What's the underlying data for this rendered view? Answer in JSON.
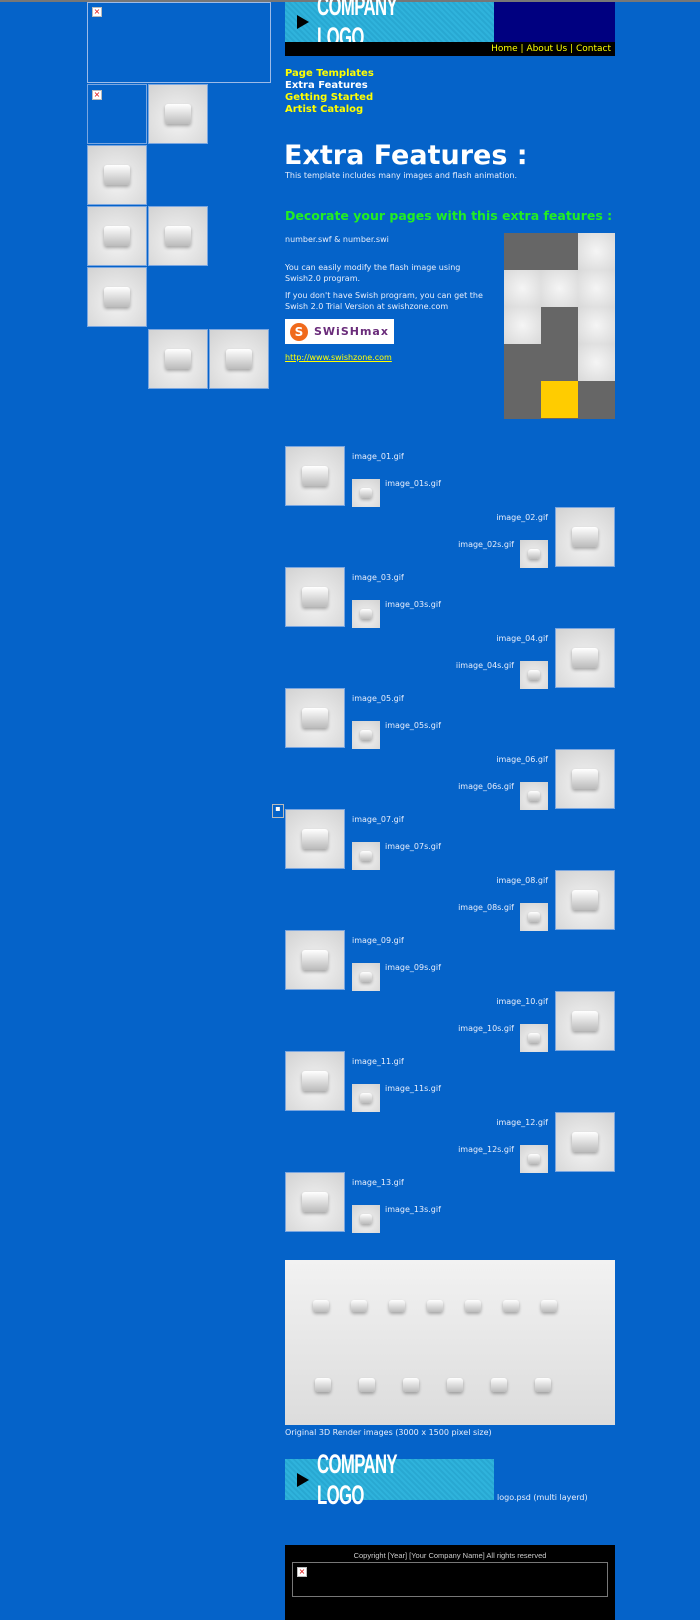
{
  "header": {
    "logo_text": "COMPANY LOGO",
    "nav": [
      "Home",
      "About Us",
      "Contact"
    ],
    "separator": "|"
  },
  "menu": [
    "Page Templates",
    "Extra Features",
    "Getting Started",
    "Artist Catalog"
  ],
  "main": {
    "title": "Extra Features :",
    "subtitle": "This template includes many images and flash animation.",
    "section_heading": "Decorate your pages with this extra features :",
    "flash_files": "number.swf & number.swi",
    "para1": "You can easily modify the flash image using Swish2.0 program.",
    "para2": "If you don't have Swish program, you can get the Swish 2.0 Trial Version at swishzone.com",
    "swish_logo": "SWiSHmax",
    "link": "http://www.swishzone.com"
  },
  "images": [
    {
      "big": "image_01.gif",
      "small": "image_01s.gif"
    },
    {
      "big": "image_02.gif",
      "small": "image_02s.gif"
    },
    {
      "big": "image_03.gif",
      "small": "image_03s.gif"
    },
    {
      "big": "image_04.gif",
      "small": "iimage_04s.gif"
    },
    {
      "big": "image_05.gif",
      "small": "image_05s.gif"
    },
    {
      "big": "image_06.gif",
      "small": "image_06s.gif"
    },
    {
      "big": "image_07.gif",
      "small": "image_07s.gif"
    },
    {
      "big": "image_08.gif",
      "small": "image_08s.gif"
    },
    {
      "big": "image_09.gif",
      "small": "image_09s.gif"
    },
    {
      "big": "image_10.gif",
      "small": "image_10s.gif"
    },
    {
      "big": "image_11.gif",
      "small": "image_11s.gif"
    },
    {
      "big": "image_12.gif",
      "small": "image_12s.gif"
    },
    {
      "big": "image_13.gif",
      "small": "image_13s.gif"
    }
  ],
  "render_caption": "Original 3D Render images (3000 x 1500 pixel size)",
  "logo_caption": "logo.psd (multi layerd)",
  "footer": {
    "copyright": "Copyright [Year] [Your Company Name] All rights reserved"
  },
  "colors": {
    "background": "#0563c9",
    "nav_link": "#ffff00",
    "heading_green": "#22ee22",
    "header_dark": "#000080"
  }
}
